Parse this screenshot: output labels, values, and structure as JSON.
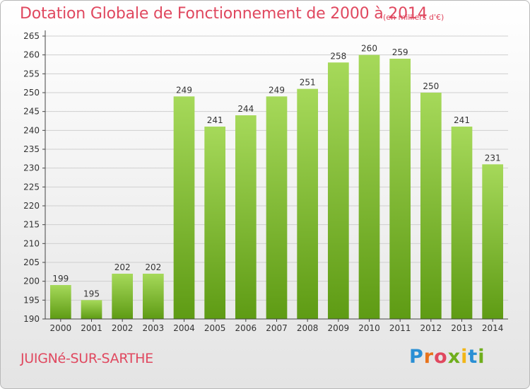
{
  "header": {
    "title": "Dotation Globale de Fonctionnement de 2000 à 2014",
    "unit": "(en milliers d'€)"
  },
  "footer": {
    "commune": "JUIGNé-SUR-SARTHE",
    "logo_text": "Proxiti"
  },
  "colors": {
    "title": "#e0485f",
    "bar_top": "#a6d95a",
    "bar_bottom": "#5e9b14",
    "grid": "#cfcfcf",
    "axis": "#444444"
  },
  "chart_data": {
    "type": "bar",
    "title": "Dotation Globale de Fonctionnement de 2000 à 2014",
    "xlabel": "",
    "ylabel": "",
    "categories": [
      "2000",
      "2001",
      "2002",
      "2003",
      "2004",
      "2005",
      "2006",
      "2007",
      "2008",
      "2009",
      "2010",
      "2011",
      "2012",
      "2013",
      "2014"
    ],
    "values": [
      199,
      195,
      202,
      202,
      249,
      241,
      244,
      249,
      251,
      258,
      260,
      259,
      250,
      241,
      231
    ],
    "ylim": [
      190,
      265
    ],
    "yticks": [
      190,
      195,
      200,
      205,
      210,
      215,
      220,
      225,
      230,
      235,
      240,
      245,
      250,
      255,
      260,
      265
    ],
    "grid": true,
    "data_labels": true
  }
}
